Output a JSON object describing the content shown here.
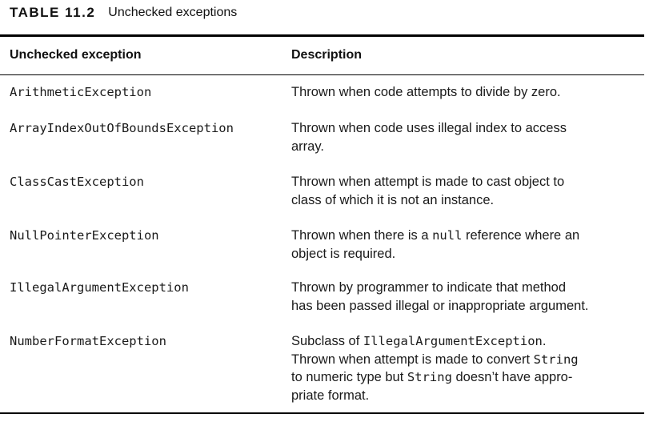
{
  "caption": {
    "number": "TABLE 11.2",
    "title": "Unchecked exceptions"
  },
  "headers": {
    "exception": "Unchecked exception",
    "description": "Description"
  },
  "rows": [
    {
      "exception": "ArithmeticException",
      "description_lines": [
        [
          {
            "t": "Thrown when code attempts to divide by zero."
          }
        ]
      ]
    },
    {
      "exception": "ArrayIndexOutOfBoundsException",
      "description_lines": [
        [
          {
            "t": "Thrown when code uses illegal index to access"
          }
        ],
        [
          {
            "t": "array."
          }
        ]
      ]
    },
    {
      "exception": "ClassCastException",
      "description_lines": [
        [
          {
            "t": "Thrown when attempt is made to cast object to"
          }
        ],
        [
          {
            "t": "class of which it is not an instance."
          }
        ]
      ]
    },
    {
      "exception": "NullPointerException",
      "description_lines": [
        [
          {
            "t": "Thrown when there is a "
          },
          {
            "t": "null",
            "code": true
          },
          {
            "t": " reference where an"
          }
        ],
        [
          {
            "t": "object is required."
          }
        ]
      ]
    },
    {
      "exception": "IllegalArgumentException",
      "description_lines": [
        [
          {
            "t": "Thrown by programmer to indicate that method"
          }
        ],
        [
          {
            "t": "has been passed illegal or inappropriate argument."
          }
        ]
      ]
    },
    {
      "exception": "NumberFormatException",
      "description_lines": [
        [
          {
            "t": "Subclass of "
          },
          {
            "t": "IllegalArgumentException",
            "code": true
          },
          {
            "t": "."
          }
        ],
        [
          {
            "t": "Thrown when attempt is made to convert "
          },
          {
            "t": "String",
            "code": true
          }
        ],
        [
          {
            "t": "to numeric type but "
          },
          {
            "t": "String",
            "code": true
          },
          {
            "t": " doesn’t have appro-"
          }
        ],
        [
          {
            "t": "priate format."
          }
        ]
      ]
    }
  ]
}
